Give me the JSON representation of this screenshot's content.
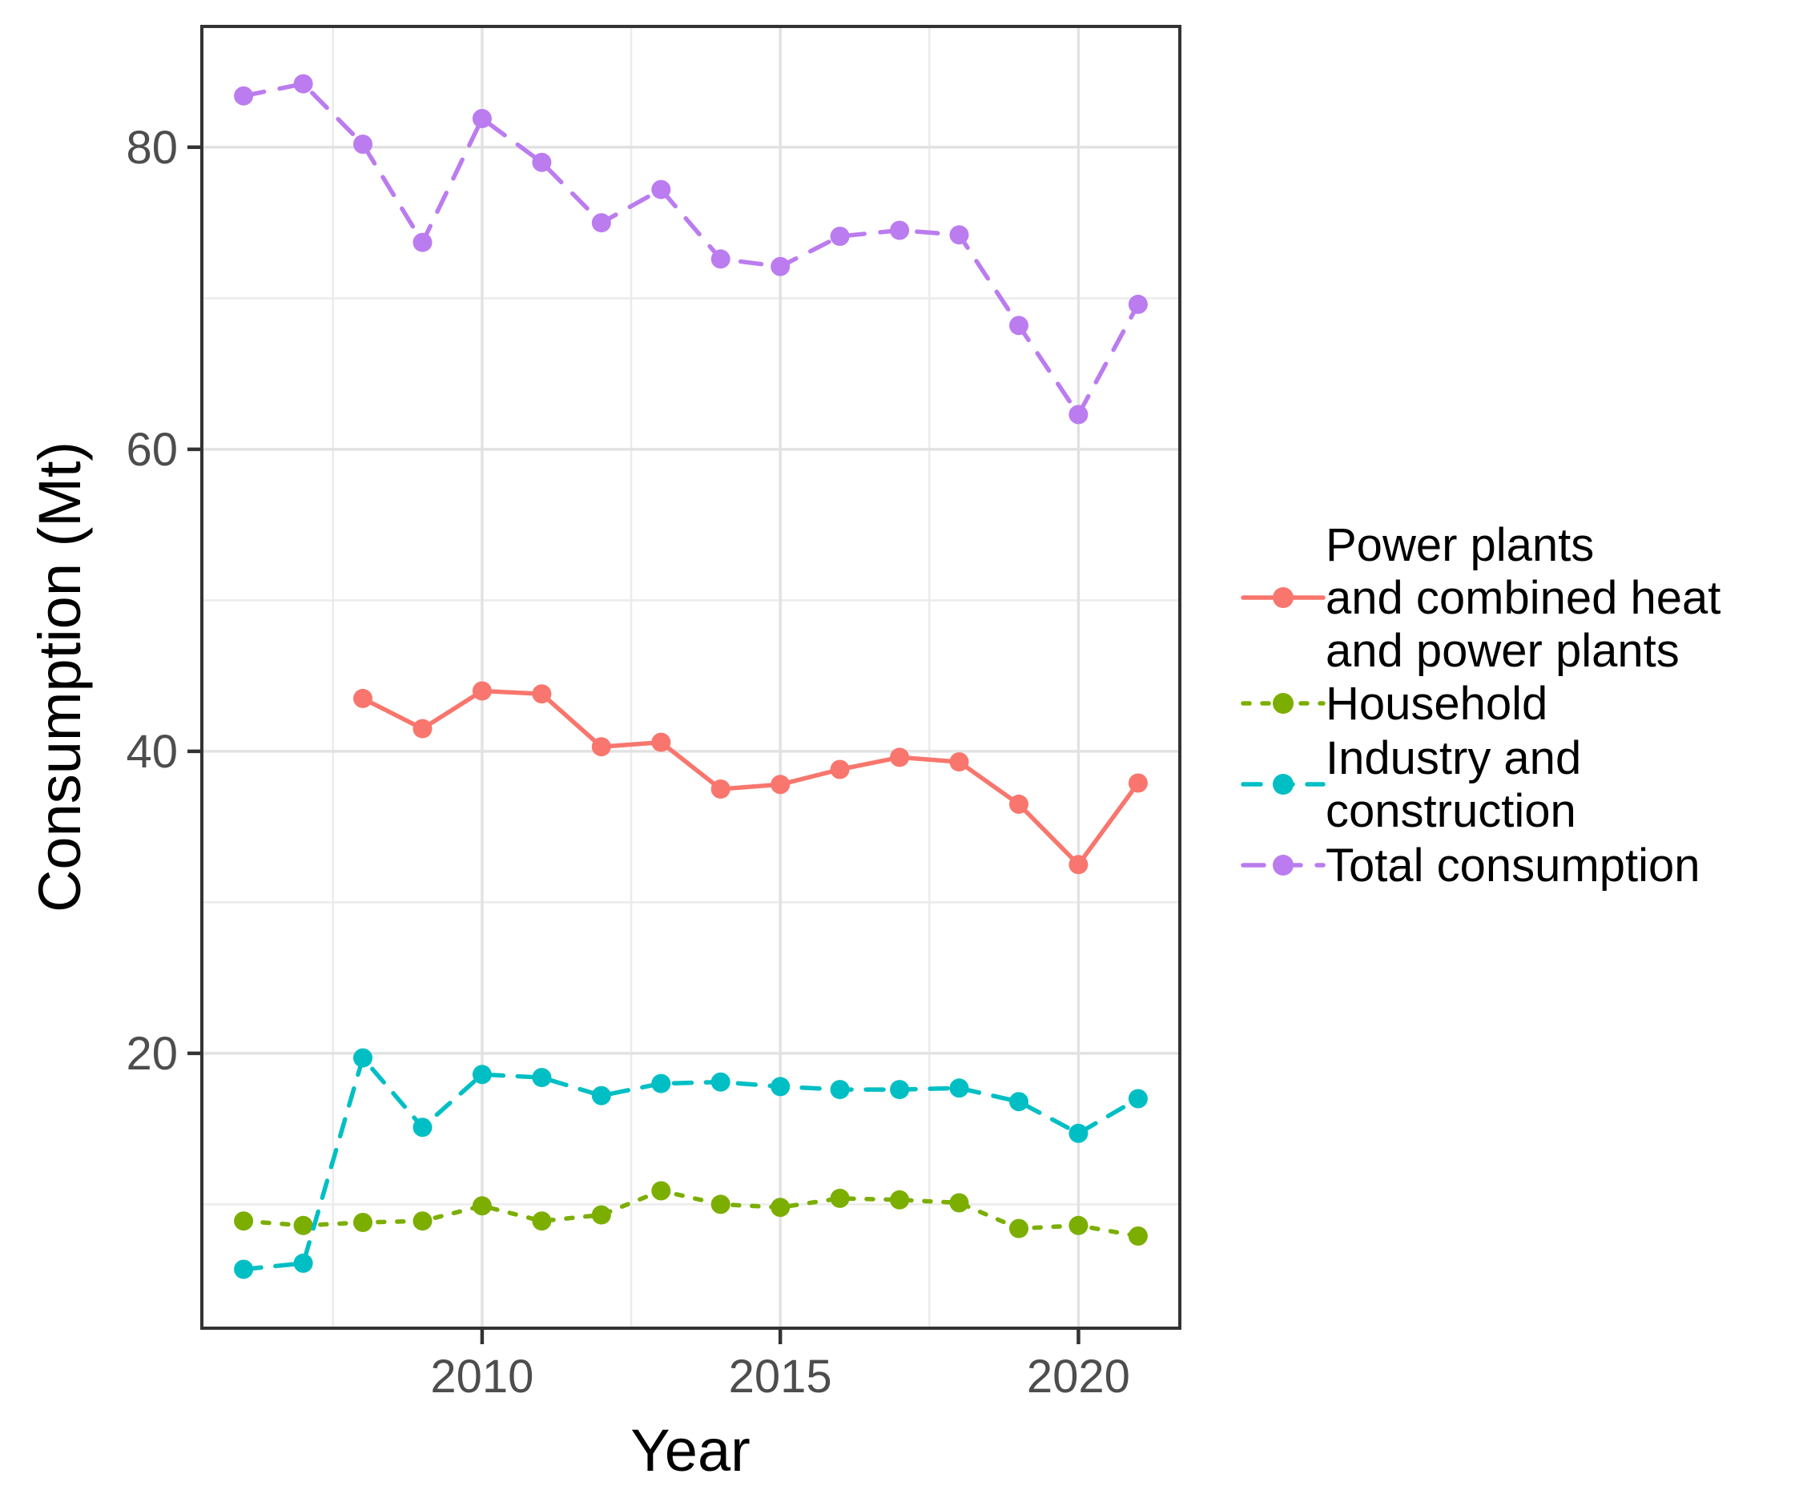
{
  "figure": {
    "xlabel": "Year",
    "ylabel": "Consumption (Mt)"
  },
  "axes": {
    "x_tick_labels": [
      "2010",
      "2015",
      "2020"
    ],
    "x_tick_years": [
      2010,
      2015,
      2020
    ],
    "x_minor_years": [
      2007.5,
      2012.5,
      2017.5
    ],
    "y_tick_labels": [
      "20",
      "40",
      "60",
      "80"
    ],
    "y_tick_values": [
      20,
      40,
      60,
      80
    ],
    "y_minor_values": [
      10,
      30,
      50,
      70
    ]
  },
  "legend": {
    "position": "right",
    "items": [
      {
        "name": "power-plants-and-chp",
        "lines": [
          "Power plants",
          "and combined heat",
          "and power plants"
        ],
        "color": "#F8766D",
        "dash": "solid"
      },
      {
        "name": "household",
        "lines": [
          "Household"
        ],
        "color": "#7CAE00",
        "dash": "dotted"
      },
      {
        "name": "industry-and-construction",
        "lines": [
          "Industry and",
          "construction"
        ],
        "color": "#00BFC4",
        "dash": "dashed"
      },
      {
        "name": "total-consumption",
        "lines": [
          "Total consumption"
        ],
        "color": "#BB7CEF",
        "dash": "longdash"
      }
    ]
  },
  "chart_data": {
    "type": "line",
    "title": "",
    "xlabel": "Year",
    "ylabel": "Consumption (Mt)",
    "xlim": [
      2005.3,
      2021.7
    ],
    "ylim": [
      1.8,
      88
    ],
    "grid": true,
    "legend_position": "right",
    "x": [
      2006,
      2007,
      2008,
      2009,
      2010,
      2011,
      2012,
      2013,
      2014,
      2015,
      2016,
      2017,
      2018,
      2019,
      2020,
      2021
    ],
    "series": [
      {
        "name": "power-plants-and-chp",
        "label": "Power plants and combined heat and power plants",
        "color": "#F8766D",
        "dash": "solid",
        "values": [
          null,
          null,
          43.5,
          41.5,
          44.0,
          43.8,
          40.3,
          40.6,
          37.5,
          37.8,
          38.8,
          39.6,
          39.3,
          36.5,
          32.5,
          37.9
        ]
      },
      {
        "name": "household",
        "label": "Household",
        "color": "#7CAE00",
        "dash": "dotted",
        "values": [
          8.9,
          8.6,
          8.8,
          8.9,
          9.9,
          8.9,
          9.3,
          10.9,
          10.0,
          9.8,
          10.4,
          10.3,
          10.1,
          8.4,
          8.6,
          7.9
        ]
      },
      {
        "name": "industry-and-construction",
        "label": "Industry and construction",
        "color": "#00BFC4",
        "dash": "dashed",
        "values": [
          5.7,
          6.1,
          19.7,
          15.1,
          18.6,
          18.4,
          17.2,
          18.0,
          18.1,
          17.8,
          17.6,
          17.6,
          17.7,
          16.8,
          14.7,
          17.0
        ]
      },
      {
        "name": "total-consumption",
        "label": "Total consumption",
        "color": "#BB7CEF",
        "dash": "longdash",
        "values": [
          83.4,
          84.2,
          80.2,
          73.7,
          81.9,
          79.0,
          75.0,
          77.2,
          72.6,
          72.1,
          74.1,
          74.5,
          74.2,
          68.2,
          62.3,
          69.6
        ]
      }
    ]
  }
}
